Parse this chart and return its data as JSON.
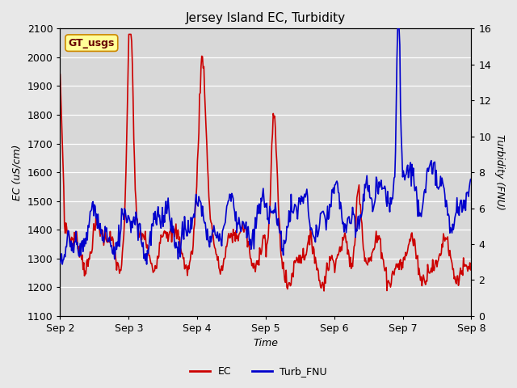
{
  "title": "Jersey Island EC, Turbidity",
  "ylabel_left": "EC (uS/cm)",
  "ylabel_right": "Turbidity (FNU)",
  "xlabel": "Time",
  "ylim_left": [
    1100,
    2100
  ],
  "ylim_right": [
    0,
    16
  ],
  "yticks_left": [
    1100,
    1200,
    1300,
    1400,
    1500,
    1600,
    1700,
    1800,
    1900,
    2000,
    2100
  ],
  "yticks_right": [
    0,
    2,
    4,
    6,
    8,
    10,
    12,
    14,
    16
  ],
  "xtick_labels": [
    "Sep 2",
    "Sep 3",
    "Sep 4",
    "Sep 5",
    "Sep 6",
    "Sep 7",
    "Sep 8"
  ],
  "legend_label_text": "GT_usgs",
  "ec_color": "#cc0000",
  "turb_color": "#0000cc",
  "plot_bg_color": "#d8d8d8",
  "fig_bg_color": "#e8e8e8",
  "title_fontsize": 11,
  "axis_label_fontsize": 9,
  "tick_fontsize": 9,
  "legend_box_facecolor": "#ffff99",
  "legend_box_edgecolor": "#cc8800",
  "grid_color": "#ffffff",
  "line_width": 1.2
}
